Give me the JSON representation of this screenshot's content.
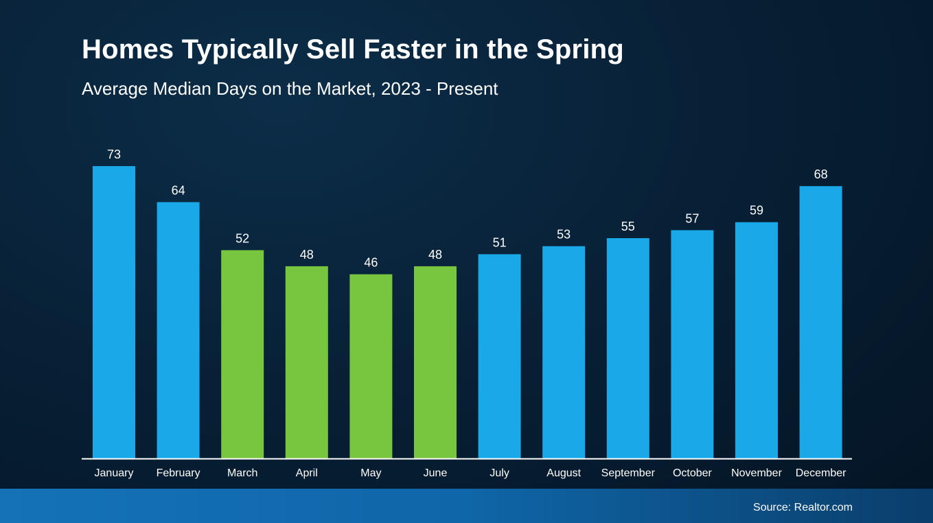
{
  "title": "Homes Typically Sell Faster in the Spring",
  "subtitle": "Average Median Days on the Market, 2023 - Present",
  "source": "Source: Realtor.com",
  "colors": {
    "default_bar": "#1aa9e8",
    "spring_bar": "#78c63f",
    "axis": "#ffffff",
    "text": "#ffffff"
  },
  "chart_data": {
    "type": "bar",
    "title": "Homes Typically Sell Faster in the Spring",
    "subtitle": "Average Median Days on the Market, 2023 - Present",
    "xlabel": "",
    "ylabel": "",
    "ylim": [
      0,
      73
    ],
    "grid": false,
    "categories": [
      "January",
      "February",
      "March",
      "April",
      "May",
      "June",
      "July",
      "August",
      "September",
      "October",
      "November",
      "December"
    ],
    "values": [
      73,
      64,
      52,
      48,
      46,
      48,
      51,
      53,
      55,
      57,
      59,
      68
    ],
    "highlighted": [
      "March",
      "April",
      "May",
      "June"
    ]
  }
}
